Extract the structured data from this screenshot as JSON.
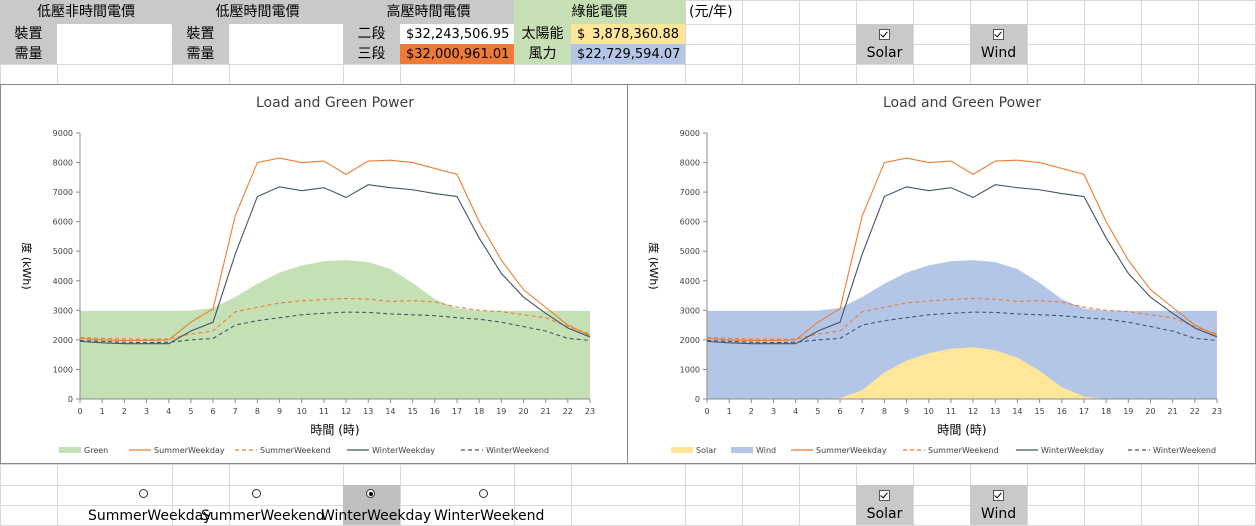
{
  "header": {
    "low_non_tou": "低壓非時間電價",
    "low_tou": "低壓時間電價",
    "high_tou": "高壓時間電價",
    "green": "綠能電價",
    "unit": "(元/年)"
  },
  "row_labels": {
    "install": "裝置",
    "demand": "需量",
    "stage2": "二段",
    "stage3": "三段",
    "solar": "太陽能",
    "wind": "風力"
  },
  "values": {
    "dollar": "$",
    "stage2": "32,243,506.95",
    "stage3": "32,000,961.01",
    "solar": "3,878,360.88",
    "wind": "22,729,594.07"
  },
  "toggles": {
    "top": [
      {
        "label": "Solar",
        "checked": true
      },
      {
        "label": "Wind",
        "checked": true
      }
    ],
    "bottom": [
      {
        "label": "Solar",
        "checked": true
      },
      {
        "label": "Wind",
        "checked": true
      }
    ]
  },
  "radios": [
    {
      "label": "SummerWeekday",
      "selected": false
    },
    {
      "label": "SummerWeekend",
      "selected": false
    },
    {
      "label": "WinterWeekday",
      "selected": true
    },
    {
      "label": "WinterWeekend",
      "selected": false
    }
  ],
  "colors": {
    "header_gray": "#c9c9c9",
    "green_header": "#c6dfb4",
    "stage2_fill": "#ffffff",
    "stage3_fill": "#f07a35",
    "solar_fill": "#ffe699",
    "wind_fill": "#b4c6e7",
    "green_area": "#c5e0b4",
    "solar_area": "#ffe699",
    "wind_area": "#b4c6e7",
    "summer": "#ed7d31",
    "winter": "#44546a",
    "selected_cell": "#bfbfbf"
  },
  "chart_data": [
    {
      "type": "area",
      "title": "Load and Green Power",
      "xlabel": "時間 (時)",
      "ylabel": "度 (kWh)",
      "ylim": [
        0,
        9000
      ],
      "yticks": [
        0,
        1000,
        2000,
        3000,
        4000,
        5000,
        6000,
        7000,
        8000,
        9000
      ],
      "x": [
        0,
        1,
        2,
        3,
        4,
        5,
        6,
        7,
        8,
        9,
        10,
        11,
        12,
        13,
        14,
        15,
        16,
        17,
        18,
        19,
        20,
        21,
        22,
        23
      ],
      "grid": false,
      "legend_position": "bottom",
      "areas": [
        {
          "name": "Green",
          "color": "#c5e0b4",
          "values": [
            2980,
            2980,
            2980,
            2980,
            2980,
            2990,
            3080,
            3450,
            3900,
            4280,
            4520,
            4660,
            4700,
            4630,
            4400,
            3930,
            3380,
            3060,
            2990,
            2980,
            2980,
            2980,
            2980,
            2980
          ]
        }
      ],
      "series": [
        {
          "name": "SummerWeekday",
          "color": "#ed7d31",
          "dash": false,
          "values": [
            2050,
            2000,
            1980,
            1980,
            2000,
            2600,
            3050,
            6200,
            8000,
            8150,
            8000,
            8050,
            7600,
            8050,
            8080,
            8000,
            7800,
            7600,
            6000,
            4700,
            3700,
            3100,
            2500,
            2150
          ]
        },
        {
          "name": "SummerWeekend",
          "color": "#ed7d31",
          "dash": true,
          "values": [
            2080,
            2050,
            2030,
            2020,
            2030,
            2200,
            2300,
            2950,
            3100,
            3250,
            3320,
            3370,
            3400,
            3380,
            3300,
            3330,
            3280,
            3110,
            3000,
            2960,
            2850,
            2750,
            2450,
            2200
          ]
        },
        {
          "name": "WinterWeekday",
          "color": "#44546a",
          "dash": false,
          "values": [
            1950,
            1900,
            1870,
            1870,
            1870,
            2300,
            2600,
            4900,
            6850,
            7180,
            7050,
            7150,
            6820,
            7250,
            7150,
            7080,
            6950,
            6850,
            5450,
            4250,
            3450,
            2900,
            2400,
            2100
          ]
        },
        {
          "name": "WinterWeekend",
          "color": "#44546a",
          "dash": true,
          "values": [
            1980,
            1950,
            1920,
            1910,
            1920,
            2000,
            2050,
            2500,
            2650,
            2750,
            2850,
            2900,
            2940,
            2930,
            2880,
            2850,
            2820,
            2750,
            2700,
            2600,
            2450,
            2300,
            2050,
            1980
          ]
        }
      ]
    },
    {
      "type": "area",
      "title": "Load and Green Power",
      "xlabel": "時間 (時)",
      "ylabel": "度 (kWh)",
      "ylim": [
        0,
        9000
      ],
      "yticks": [
        0,
        1000,
        2000,
        3000,
        4000,
        5000,
        6000,
        7000,
        8000,
        9000
      ],
      "x": [
        0,
        1,
        2,
        3,
        4,
        5,
        6,
        7,
        8,
        9,
        10,
        11,
        12,
        13,
        14,
        15,
        16,
        17,
        18,
        19,
        20,
        21,
        22,
        23
      ],
      "grid": false,
      "legend_position": "bottom",
      "areas": [
        {
          "name": "Solar",
          "color": "#ffe699",
          "values": [
            0,
            0,
            0,
            0,
            0,
            0,
            30,
            300,
            900,
            1300,
            1550,
            1700,
            1750,
            1650,
            1400,
            950,
            400,
            80,
            0,
            0,
            0,
            0,
            0,
            0
          ]
        },
        {
          "name": "Wind",
          "color": "#b4c6e7",
          "values": [
            2980,
            2980,
            2980,
            2980,
            2980,
            2990,
            3080,
            3450,
            3900,
            4280,
            4520,
            4660,
            4700,
            4630,
            4400,
            3930,
            3380,
            3060,
            2990,
            2980,
            2980,
            2980,
            2980,
            2980
          ]
        }
      ],
      "series": [
        {
          "name": "SummerWeekday",
          "color": "#ed7d31",
          "dash": false,
          "values": [
            2050,
            2000,
            1980,
            1980,
            2000,
            2600,
            3050,
            6200,
            8000,
            8150,
            8000,
            8050,
            7600,
            8050,
            8080,
            8000,
            7800,
            7600,
            6000,
            4700,
            3700,
            3100,
            2500,
            2150
          ]
        },
        {
          "name": "SummerWeekend",
          "color": "#ed7d31",
          "dash": true,
          "values": [
            2080,
            2050,
            2030,
            2020,
            2030,
            2200,
            2300,
            2950,
            3100,
            3250,
            3320,
            3370,
            3400,
            3380,
            3300,
            3330,
            3280,
            3110,
            3000,
            2960,
            2850,
            2750,
            2450,
            2200
          ]
        },
        {
          "name": "WinterWeekday",
          "color": "#44546a",
          "dash": false,
          "values": [
            1950,
            1900,
            1870,
            1870,
            1870,
            2300,
            2600,
            4900,
            6850,
            7180,
            7050,
            7150,
            6820,
            7250,
            7150,
            7080,
            6950,
            6850,
            5450,
            4250,
            3450,
            2900,
            2400,
            2100
          ]
        },
        {
          "name": "WinterWeekend",
          "color": "#44546a",
          "dash": true,
          "values": [
            1980,
            1950,
            1920,
            1910,
            1920,
            2000,
            2050,
            2500,
            2650,
            2750,
            2850,
            2900,
            2940,
            2930,
            2880,
            2850,
            2820,
            2750,
            2700,
            2600,
            2450,
            2300,
            2050,
            1980
          ]
        }
      ]
    }
  ]
}
